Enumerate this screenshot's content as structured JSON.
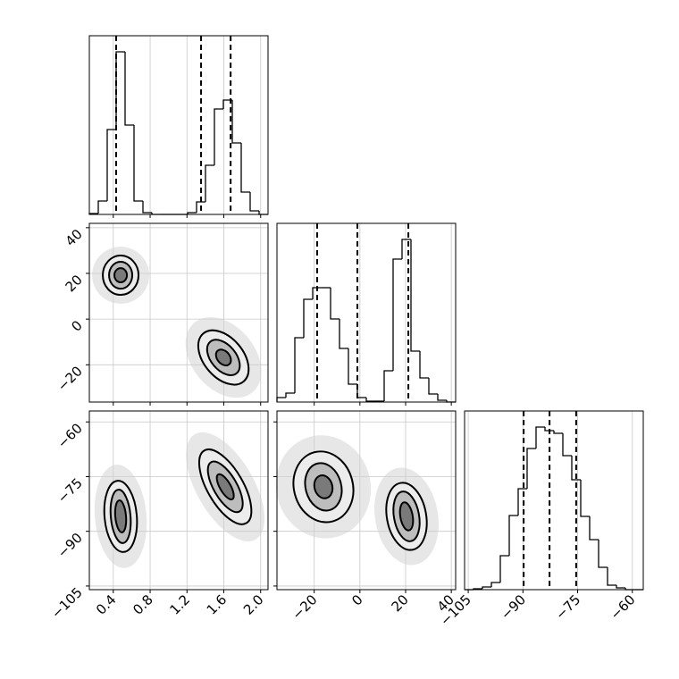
{
  "chart_data": [
    {
      "type": "histogram",
      "color": "#000000",
      "bins": [
        0.14,
        0.237,
        0.334,
        0.431,
        0.528,
        0.625,
        0.722,
        0.819,
        0.916,
        1.013,
        1.11,
        1.207,
        1.304,
        1.401,
        1.498,
        1.595,
        1.692,
        1.789,
        1.886,
        1.983,
        2.08
      ],
      "counts": [
        1,
        15,
        95,
        182,
        100,
        15,
        2,
        0,
        0,
        0,
        0,
        2,
        14,
        55,
        118,
        128,
        80,
        25,
        4,
        0
      ],
      "quantiles": [
        0.431,
        1.353,
        1.674
      ],
      "xlim": [
        0.14,
        2.08
      ],
      "ylim": [
        0,
        200
      ],
      "xticks": [
        0.4,
        0.8,
        1.2,
        1.6,
        {
          "value": 2,
          "label": "2.0"
        }
      ],
      "x_tick_labels": false,
      "grid": true
    },
    {
      "type": "contour",
      "xlim": [
        0.14,
        2.08
      ],
      "ylim": [
        -36.3,
        41.9
      ],
      "xticks": [
        0.4,
        0.8,
        1.2,
        1.6,
        {
          "value": 2,
          "label": "2.0"
        }
      ],
      "yticks": [
        {
          "value": -20,
          "label": "−20"
        },
        0,
        20,
        40
      ],
      "x_tick_labels": false,
      "y_tick_labels": true,
      "grid": true,
      "contours": [
        {
          "x": 0.48,
          "y": 19.2,
          "angle": 0,
          "levels": [
            {
              "rx": 0.194,
              "ry": 8.6
            },
            {
              "rx": 0.126,
              "ry": 5.9
            },
            {
              "rx": 0.068,
              "ry": 3.1
            }
          ]
        },
        {
          "x": 1.596,
          "y": -16.8,
          "angle": -40,
          "levels": [
            {
              "rx": 0.214,
              "ry": 13.7
            },
            {
              "rx": 0.136,
              "ry": 9.0
            },
            {
              "rx": 0.068,
              "ry": 3.9
            }
          ]
        }
      ]
    },
    {
      "type": "histogram",
      "color": "#000000",
      "bins": [
        -36.3,
        -32.39,
        -28.48,
        -24.57,
        -20.66,
        -16.75,
        -12.84,
        -8.93,
        -5.02,
        -1.11,
        2.8,
        6.71,
        10.62,
        14.53,
        18.44,
        22.35,
        26.26,
        30.17,
        34.08,
        37.99,
        41.9
      ],
      "counts": [
        5,
        10,
        72,
        115,
        128,
        128,
        93,
        60,
        20,
        5,
        1,
        1,
        35,
        160,
        182,
        57,
        27,
        9,
        2,
        0
      ],
      "quantiles": [
        -18.7,
        -1.1,
        21.2
      ],
      "xlim": [
        -36.3,
        41.9
      ],
      "ylim": [
        0,
        200
      ],
      "xticks": [
        {
          "value": -20,
          "label": "−20"
        },
        0,
        20,
        40
      ],
      "x_tick_labels": false,
      "grid": true
    },
    {
      "type": "contour",
      "xlim": [
        0.14,
        2.08
      ],
      "ylim": [
        -106,
        -57
      ],
      "xticks": [
        0.4,
        0.8,
        1.2,
        1.6,
        {
          "value": 2,
          "label": "2.0"
        }
      ],
      "yticks": [
        {
          "value": -105,
          "label": "−105"
        },
        {
          "value": -90,
          "label": "−90"
        },
        {
          "value": -75,
          "label": "−75"
        },
        {
          "value": -60,
          "label": "−60"
        }
      ],
      "x_tick_labels": true,
      "y_tick_labels": true,
      "grid": true,
      "contours": [
        {
          "x": 0.48,
          "y": -85.9,
          "angle": -5,
          "levels": [
            {
              "rx": 0.175,
              "ry": 9.8
            },
            {
              "rx": 0.107,
              "ry": 7.35
            },
            {
              "rx": 0.058,
              "ry": 4.4
            }
          ]
        },
        {
          "x": 1.616,
          "y": -77.8,
          "angle": -30,
          "levels": [
            {
              "rx": 0.194,
              "ry": 11.5
            },
            {
              "rx": 0.126,
              "ry": 7.8
            },
            {
              "rx": 0.058,
              "ry": 3.9
            }
          ]
        }
      ]
    },
    {
      "type": "contour",
      "xlim": [
        -36.3,
        41.9
      ],
      "ylim": [
        -106,
        -57
      ],
      "xticks": [
        {
          "value": -20,
          "label": "−20"
        },
        0,
        20,
        40
      ],
      "yticks": [
        {
          "value": -105,
          "label": "−105"
        },
        {
          "value": -90,
          "label": "−90"
        },
        {
          "value": -75,
          "label": "−75"
        },
        {
          "value": -60,
          "label": "−60"
        }
      ],
      "x_tick_labels": true,
      "y_tick_labels": false,
      "grid": true,
      "contours": [
        {
          "x": -15.97,
          "y": -77.8,
          "angle": -15,
          "levels": [
            {
              "rx": 12.9,
              "ry": 9.8
            },
            {
              "rx": 7.8,
              "ry": 6.6
            },
            {
              "rx": 3.9,
              "ry": 3.2
            }
          ]
        },
        {
          "x": 20.4,
          "y": -85.9,
          "angle": -10,
          "levels": [
            {
              "rx": 8.6,
              "ry": 9.3
            },
            {
              "rx": 5.5,
              "ry": 6.9
            },
            {
              "rx": 2.7,
              "ry": 3.9
            }
          ]
        }
      ]
    },
    {
      "type": "histogram",
      "color": "#000000",
      "bins": [
        -106,
        -103.55,
        -101.1,
        -98.65,
        -96.2,
        -93.75,
        -91.3,
        -88.85,
        -86.4,
        -83.95,
        -81.5,
        -79.05,
        -76.6,
        -74.15,
        -71.7,
        -69.25,
        -66.8,
        -64.35,
        -61.9,
        -59.45,
        -57
      ],
      "counts": [
        0,
        1,
        3,
        8,
        38,
        83,
        113,
        158,
        182,
        178,
        175,
        150,
        123,
        82,
        56,
        25,
        5,
        2,
        0,
        0
      ],
      "quantiles": [
        -89.8,
        -82.7,
        -75.4
      ],
      "xlim": [
        -106,
        -57
      ],
      "ylim": [
        0,
        200
      ],
      "xticks": [
        {
          "value": -105,
          "label": "−105"
        },
        {
          "value": -90,
          "label": "−90"
        },
        {
          "value": -75,
          "label": "−75"
        },
        {
          "value": -60,
          "label": "−60"
        }
      ],
      "x_tick_labels": true,
      "grid": true
    }
  ]
}
